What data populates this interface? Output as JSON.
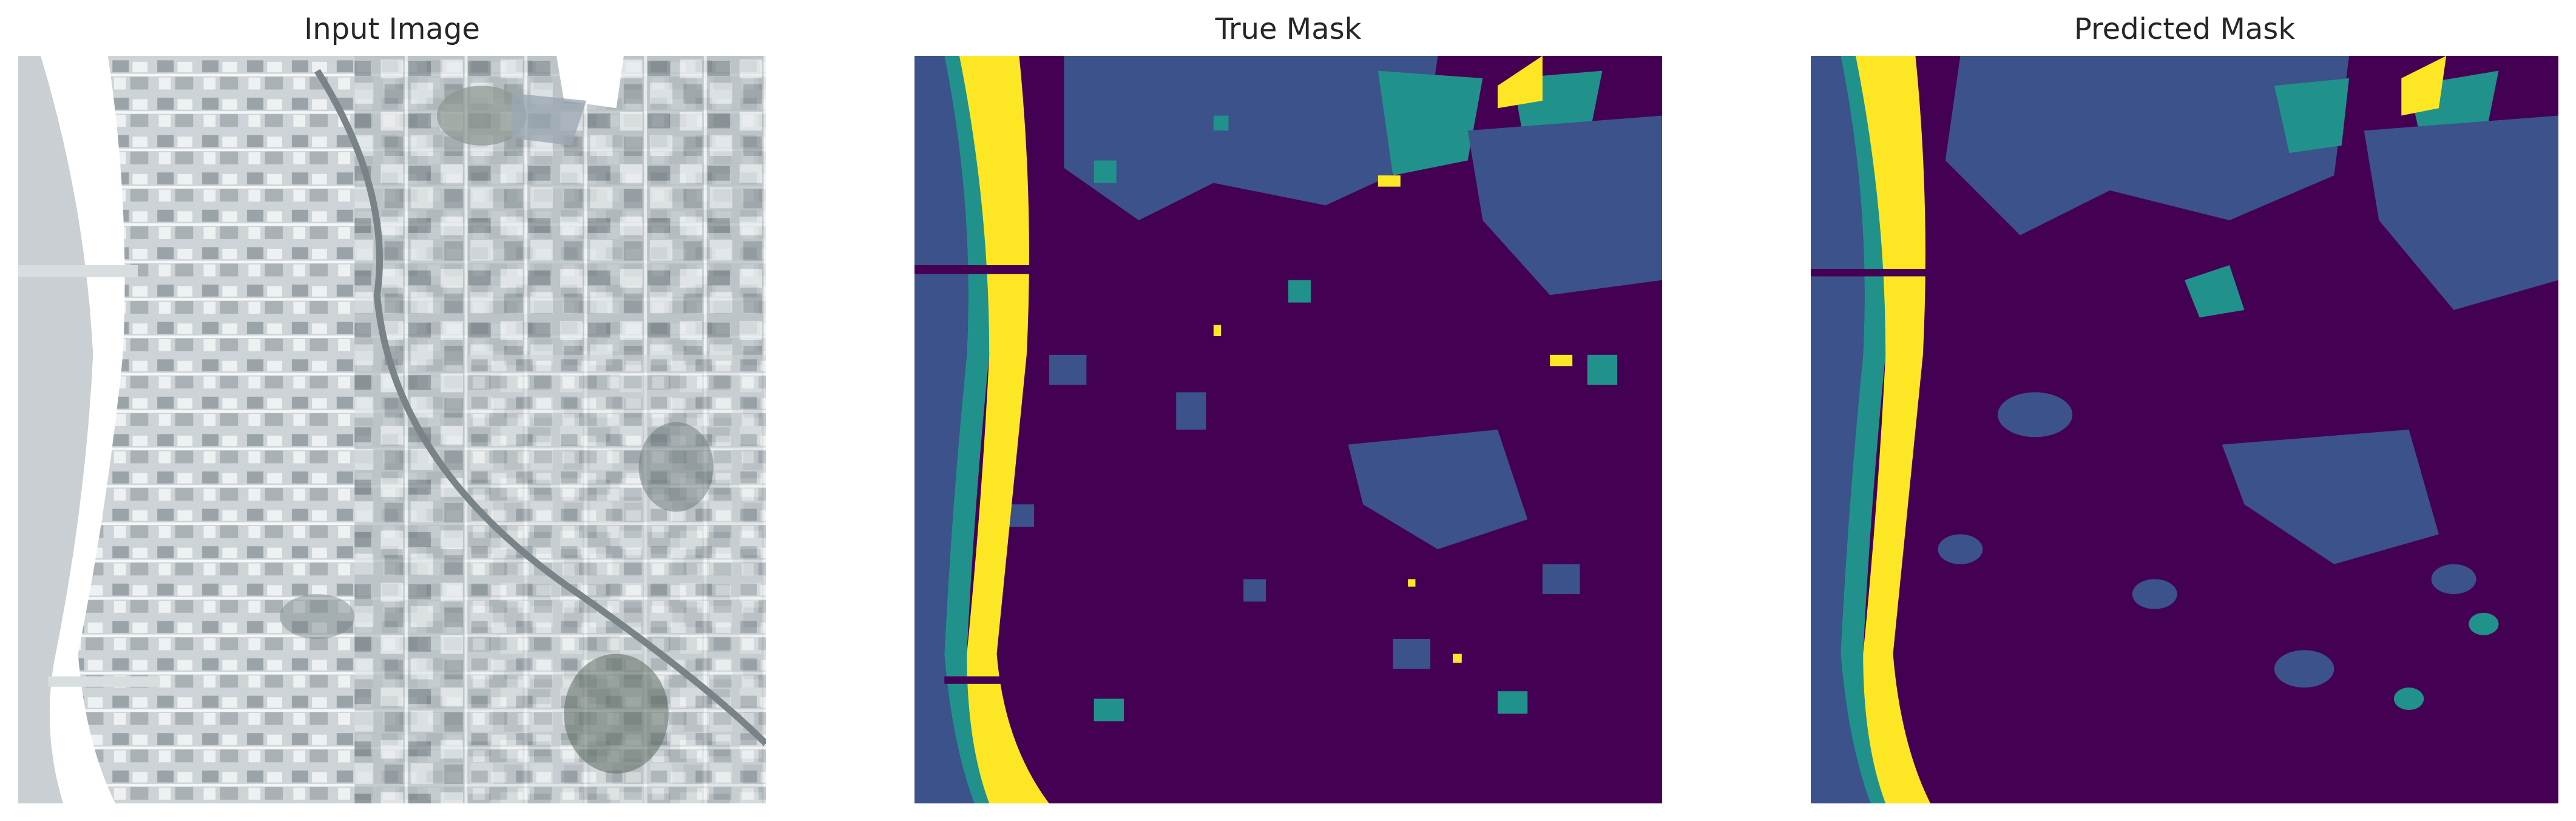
{
  "figure": {
    "panels": [
      {
        "title": "Input Image",
        "kind": "satellite-photo"
      },
      {
        "title": "True Mask",
        "kind": "segmentation-mask"
      },
      {
        "title": "Predicted Mask",
        "kind": "segmentation-mask"
      }
    ],
    "colors": {
      "background": "#ffffff",
      "title_text": "#262626",
      "mask_class_0": "#440154",
      "mask_class_1": "#3b528b",
      "mask_class_2": "#21918c",
      "mask_class_3": "#fde725",
      "photo_light": "#e8ecee",
      "photo_mid": "#b8bfc3",
      "photo_dark": "#6f787c",
      "photo_white": "#ffffff"
    }
  }
}
